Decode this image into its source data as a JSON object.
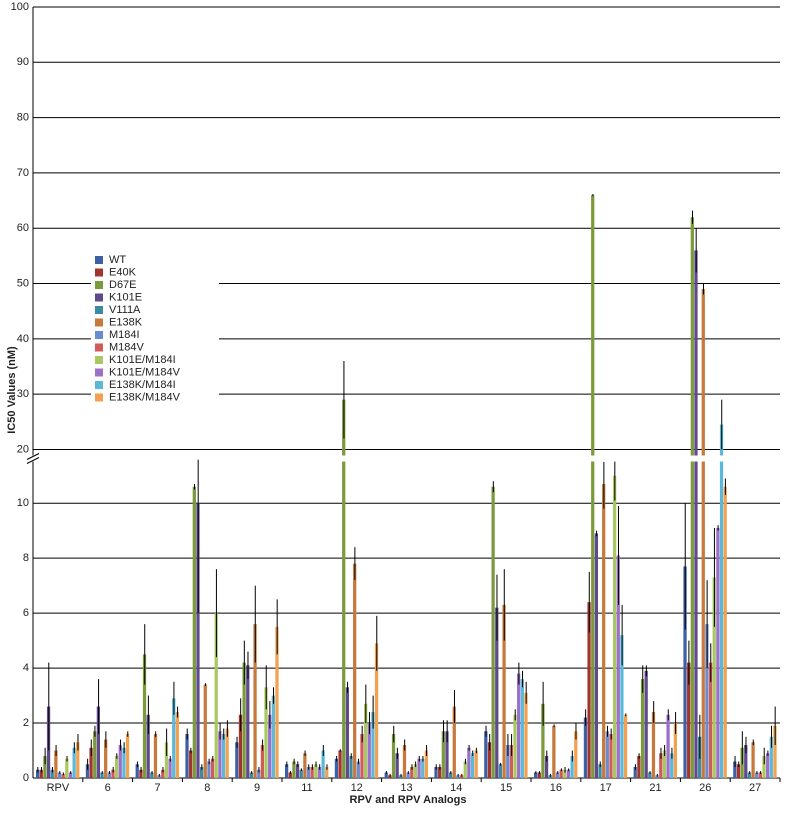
{
  "chart_data": {
    "type": "bar",
    "x_label": "RPV and RPV Analogs",
    "y_label": "IC50 Values (nM)",
    "categories": [
      "RPV",
      "6",
      "7",
      "8",
      "9",
      "11",
      "12",
      "13",
      "14",
      "15",
      "16",
      "17",
      "21",
      "26",
      "27"
    ],
    "ylim": [
      0,
      100
    ],
    "y_break": [
      11.5,
      19
    ],
    "yticks": [
      0,
      2,
      4,
      6,
      8,
      10,
      20,
      30,
      40,
      50,
      60,
      70,
      80,
      90,
      100
    ],
    "grid": true,
    "legend": "left",
    "series": [
      {
        "name": "WT",
        "color": "#3d5fa6",
        "values": [
          0.3,
          0.5,
          0.5,
          1.6,
          1.3,
          0.5,
          0.7,
          0.2,
          0.4,
          1.7,
          0.2,
          2.2,
          0.4,
          7.7,
          0.6
        ],
        "errors": [
          0.1,
          0.2,
          0.1,
          0.2,
          0.2,
          0.1,
          0.1,
          0.05,
          0.1,
          0.2,
          0.05,
          0.3,
          0.1,
          2.3,
          0.2
        ]
      },
      {
        "name": "E40K",
        "color": "#a3342d",
        "values": [
          0.3,
          1.1,
          0.3,
          1.0,
          2.3,
          0.2,
          1.0,
          0.1,
          0.4,
          1.3,
          0.2,
          6.4,
          0.8,
          4.2,
          0.5
        ],
        "errors": [
          0.1,
          0.3,
          0.1,
          0.1,
          0.6,
          0.05,
          0.05,
          0.05,
          0.1,
          0.3,
          0.05,
          1.1,
          0.1,
          0.8,
          0.1
        ]
      },
      {
        "name": "D67E",
        "color": "#7b9a3c",
        "values": [
          0.8,
          1.7,
          4.5,
          10.6,
          4.2,
          0.6,
          29,
          1.6,
          1.7,
          10.6,
          2.7,
          66,
          3.6,
          62,
          1.1
        ],
        "errors": [
          0.3,
          0.2,
          1.1,
          0.1,
          0.8,
          0.1,
          7,
          0.3,
          0.4,
          0.2,
          0.8,
          0.2,
          0.5,
          1.2,
          0.6
        ]
      },
      {
        "name": "K101E",
        "color": "#5f4a8b",
        "values": [
          2.6,
          2.6,
          2.3,
          10.0,
          4.1,
          0.5,
          3.3,
          0.9,
          1.7,
          6.2,
          0.8,
          8.9,
          3.9,
          56,
          1.2
        ],
        "errors": [
          1.6,
          1.0,
          0.7,
          4.0,
          0.5,
          0.1,
          0.2,
          0.2,
          0.4,
          1.2,
          0.2,
          0.1,
          0.2,
          4,
          0.3
        ]
      },
      {
        "name": "V111A",
        "color": "#3b8aa2",
        "values": [
          0.3,
          0.2,
          0.2,
          0.4,
          0.2,
          0.3,
          0.8,
          0.1,
          0.2,
          0.5,
          0.1,
          0.5,
          0.2,
          1.5,
          0.2
        ],
        "errors": [
          0.1,
          0.05,
          0.05,
          0.1,
          0.05,
          0.05,
          0.1,
          0.05,
          0.05,
          0.05,
          0.05,
          0.1,
          0.05,
          0.8,
          0.05
        ]
      },
      {
        "name": "E138K",
        "color": "#c7793b",
        "values": [
          1.0,
          1.4,
          1.6,
          3.4,
          5.6,
          0.9,
          7.8,
          1.2,
          2.6,
          6.3,
          1.9,
          10.7,
          2.4,
          49,
          1.3
        ],
        "errors": [
          0.2,
          0.3,
          0.1,
          0.05,
          1.4,
          0.1,
          0.6,
          0.2,
          0.6,
          1.3,
          0.05,
          0.9,
          0.4,
          1.0,
          0.1
        ]
      },
      {
        "name": "M184I",
        "color": "#6b8bd0",
        "values": [
          0.2,
          0.2,
          0.1,
          0.6,
          0.3,
          0.4,
          0.6,
          0.2,
          0.1,
          1.2,
          0.2,
          1.7,
          0.1,
          5.6,
          0.2
        ],
        "errors": [
          0.05,
          0.05,
          0.05,
          0.1,
          0.1,
          0.1,
          0.1,
          0.05,
          0.05,
          0.4,
          0.05,
          0.2,
          0.05,
          1.6,
          0.05
        ]
      },
      {
        "name": "M184V",
        "color": "#d25a58",
        "values": [
          0.15,
          0.3,
          0.3,
          0.7,
          1.2,
          0.4,
          1.6,
          0.4,
          0.1,
          1.2,
          0.3,
          1.6,
          0.9,
          4.2,
          0.2
        ],
        "errors": [
          0.05,
          0.1,
          0.1,
          0.1,
          0.2,
          0.1,
          0.3,
          0.1,
          0.05,
          0.4,
          0.05,
          0.2,
          0.2,
          0.7,
          0.05
        ]
      },
      {
        "name": "K101E/M184I",
        "color": "#a9c862",
        "values": [
          0.7,
          0.8,
          1.3,
          6.0,
          3.3,
          0.5,
          2.7,
          0.5,
          0.6,
          2.3,
          0.3,
          11.0,
          1.0,
          7.3,
          0.8
        ],
        "errors": [
          0.1,
          0.1,
          0.5,
          1.6,
          0.8,
          0.1,
          0.7,
          0.1,
          0.1,
          0.2,
          0.1,
          0.9,
          0.2,
          1.8,
          0.3
        ]
      },
      {
        "name": "K101E/M184V",
        "color": "#9a70c9",
        "values": [
          0.2,
          1.2,
          0.7,
          1.7,
          2.3,
          0.4,
          2.0,
          0.7,
          1.1,
          3.8,
          0.3,
          8.1,
          2.3,
          9.1,
          0.9
        ],
        "errors": [
          0.05,
          0.2,
          0.1,
          0.3,
          0.5,
          0.1,
          0.4,
          0.1,
          0.1,
          0.4,
          0.05,
          1.8,
          0.2,
          0.1,
          0.1
        ]
      },
      {
        "name": "E138K/M184I",
        "color": "#5bb8d8",
        "values": [
          1.1,
          1.1,
          2.9,
          1.6,
          3.0,
          1.0,
          2.4,
          0.7,
          0.9,
          3.6,
          0.8,
          5.2,
          0.9,
          24.5,
          1.5
        ],
        "errors": [
          0.2,
          0.2,
          0.6,
          0.2,
          0.3,
          0.2,
          0.6,
          0.1,
          0.1,
          0.3,
          0.2,
          1.1,
          0.2,
          4.5,
          0.4
        ]
      },
      {
        "name": "E138K/M184V",
        "color": "#f1a14f",
        "values": [
          1.3,
          1.6,
          2.4,
          1.8,
          5.5,
          0.4,
          4.9,
          1.0,
          1.0,
          3.1,
          1.7,
          2.3,
          2.0,
          10.6,
          1.9
        ],
        "errors": [
          0.3,
          0.1,
          0.2,
          0.3,
          1.0,
          0.1,
          1.0,
          0.2,
          0.1,
          0.4,
          0.3,
          0.05,
          0.4,
          0.3,
          0.7
        ]
      }
    ]
  }
}
